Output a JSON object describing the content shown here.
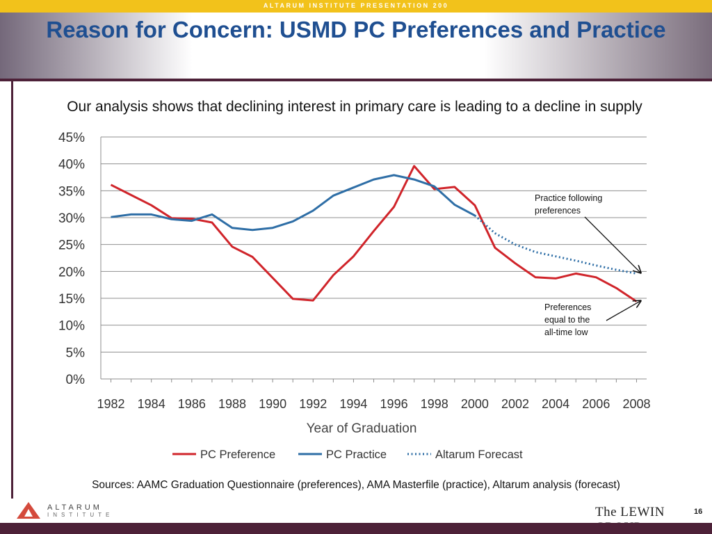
{
  "header": {
    "banner": "ALTARUM INSTITUTE PRESENTATION 200",
    "title": "Reason for Concern:  USMD PC Preferences and Practice"
  },
  "subtitle": "Our analysis shows that declining interest in primary care is leading to a decline in supply",
  "chart_data": {
    "type": "line",
    "title": "",
    "xlabel": "Year of Graduation",
    "ylabel": "",
    "xlim": [
      1981.5,
      2008.5
    ],
    "ylim": [
      0,
      45
    ],
    "x_ticks": [
      "1982",
      "1984",
      "1986",
      "1988",
      "1990",
      "1992",
      "1994",
      "1996",
      "1998",
      "2000",
      "2002",
      "2004",
      "2006",
      "2008"
    ],
    "y_ticks": [
      "0%",
      "5%",
      "10%",
      "15%",
      "20%",
      "25%",
      "30%",
      "35%",
      "40%",
      "45%"
    ],
    "grid": true,
    "legend": "bottom",
    "series": [
      {
        "name": "PC Preference",
        "color": "#d0242a",
        "style": "solid",
        "points": [
          [
            1982,
            36.1
          ],
          [
            1983,
            34.2
          ],
          [
            1984,
            32.3
          ],
          [
            1985,
            29.9
          ],
          [
            1986,
            29.8
          ],
          [
            1987,
            29.1
          ],
          [
            1988,
            24.6
          ],
          [
            1989,
            22.7
          ],
          [
            1990,
            18.8
          ],
          [
            1991,
            14.9
          ],
          [
            1992,
            14.6
          ],
          [
            1993,
            19.3
          ],
          [
            1994,
            22.8
          ],
          [
            1995,
            27.5
          ],
          [
            1996,
            32.0
          ],
          [
            1997,
            39.6
          ],
          [
            1998,
            35.3
          ],
          [
            1999,
            35.7
          ],
          [
            2000,
            32.3
          ],
          [
            2001,
            24.4
          ],
          [
            2002,
            21.5
          ],
          [
            2003,
            18.9
          ],
          [
            2004,
            18.7
          ],
          [
            2005,
            19.6
          ],
          [
            2006,
            18.9
          ],
          [
            2007,
            16.9
          ],
          [
            2008,
            14.4
          ]
        ]
      },
      {
        "name": "PC Practice",
        "color": "#2e6ea6",
        "style": "solid",
        "points": [
          [
            1982,
            30.1
          ],
          [
            1983,
            30.6
          ],
          [
            1984,
            30.6
          ],
          [
            1985,
            29.7
          ],
          [
            1986,
            29.4
          ],
          [
            1987,
            30.6
          ],
          [
            1988,
            28.1
          ],
          [
            1989,
            27.7
          ],
          [
            1990,
            28.1
          ],
          [
            1991,
            29.3
          ],
          [
            1992,
            31.3
          ],
          [
            1993,
            34.1
          ],
          [
            1994,
            35.6
          ],
          [
            1995,
            37.1
          ],
          [
            1996,
            37.9
          ],
          [
            1997,
            37.1
          ],
          [
            1998,
            35.8
          ],
          [
            1999,
            32.4
          ],
          [
            2000,
            30.4
          ]
        ]
      },
      {
        "name": "Altarum Forecast",
        "color": "#2e6ea6",
        "style": "dotted",
        "points": [
          [
            2000,
            30.4
          ],
          [
            2001,
            27.1
          ],
          [
            2002,
            25.0
          ],
          [
            2003,
            23.6
          ],
          [
            2004,
            22.8
          ],
          [
            2005,
            22.0
          ],
          [
            2006,
            21.1
          ],
          [
            2007,
            20.3
          ],
          [
            2008,
            19.6
          ]
        ]
      }
    ],
    "annotations": [
      {
        "lines": [
          "Practice following",
          "preferences"
        ],
        "target": [
          2008,
          19.6
        ]
      },
      {
        "lines": [
          "Preferences",
          "equal to the",
          "all-time low"
        ],
        "target": [
          2008,
          14.4
        ]
      }
    ]
  },
  "sources": "Sources:  AAMC Graduation Questionnaire (preferences), AMA Masterfile (practice), Altarum analysis (forecast)",
  "footer": {
    "left_logo_name": "ALTARUM",
    "left_logo_sub": "INSTITUTE",
    "right_logo": "The LEWIN GROUP",
    "page_number": "16"
  },
  "colors": {
    "banner": "#f2c21b",
    "title": "#1f4f91",
    "rule": "#4d2138",
    "logo_accent": "#d44a3c"
  }
}
